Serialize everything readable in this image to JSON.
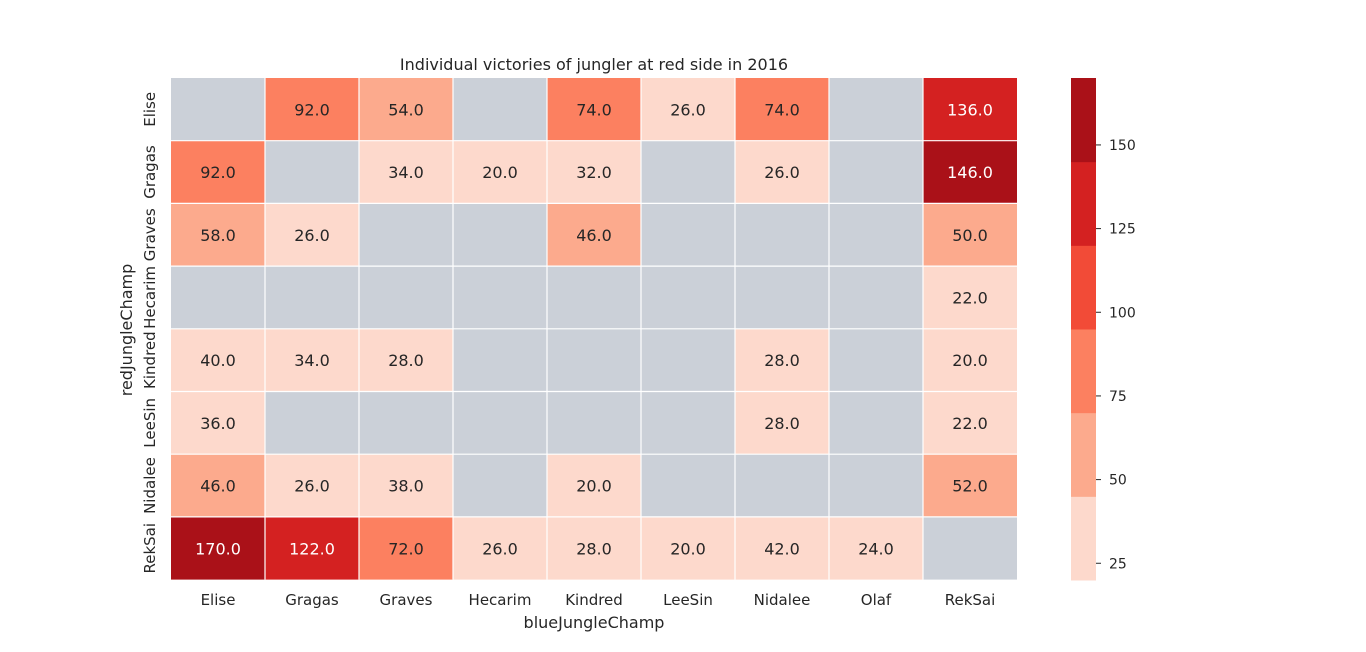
{
  "chart_data": {
    "type": "heatmap",
    "title": "Individual victories of jungler at red side in 2016",
    "xlabel": "blueJungleChamp",
    "ylabel": "redJungleChamp",
    "x_categories": [
      "Elise",
      "Gragas",
      "Graves",
      "Hecarim",
      "Kindred",
      "LeeSin",
      "Nidalee",
      "Olaf",
      "RekSai"
    ],
    "y_categories": [
      "Elise",
      "Gragas",
      "Graves",
      "Hecarim",
      "Kindred",
      "LeeSin",
      "Nidalee",
      "RekSai"
    ],
    "values": [
      [
        null,
        92.0,
        54.0,
        null,
        74.0,
        26.0,
        74.0,
        null,
        136.0
      ],
      [
        92.0,
        null,
        34.0,
        20.0,
        32.0,
        null,
        26.0,
        null,
        146.0
      ],
      [
        58.0,
        26.0,
        null,
        null,
        46.0,
        null,
        null,
        null,
        50.0
      ],
      [
        null,
        null,
        null,
        null,
        null,
        null,
        null,
        null,
        22.0
      ],
      [
        40.0,
        34.0,
        28.0,
        null,
        null,
        null,
        28.0,
        null,
        20.0
      ],
      [
        36.0,
        null,
        null,
        null,
        null,
        null,
        28.0,
        null,
        22.0
      ],
      [
        46.0,
        26.0,
        38.0,
        null,
        20.0,
        null,
        null,
        null,
        52.0
      ],
      [
        170.0,
        122.0,
        72.0,
        26.0,
        28.0,
        20.0,
        42.0,
        24.0,
        null
      ]
    ],
    "colorbar": {
      "range": [
        20,
        170
      ],
      "ticks": [
        25,
        50,
        75,
        100,
        125,
        150
      ],
      "colors": [
        "#fdd9cc",
        "#fcaa8d",
        "#fc8060",
        "#f24b37",
        "#d42121",
        "#aa1118"
      ]
    },
    "missing_color": "#cbd0d8",
    "grid": false,
    "legend": "colorbar-right"
  }
}
